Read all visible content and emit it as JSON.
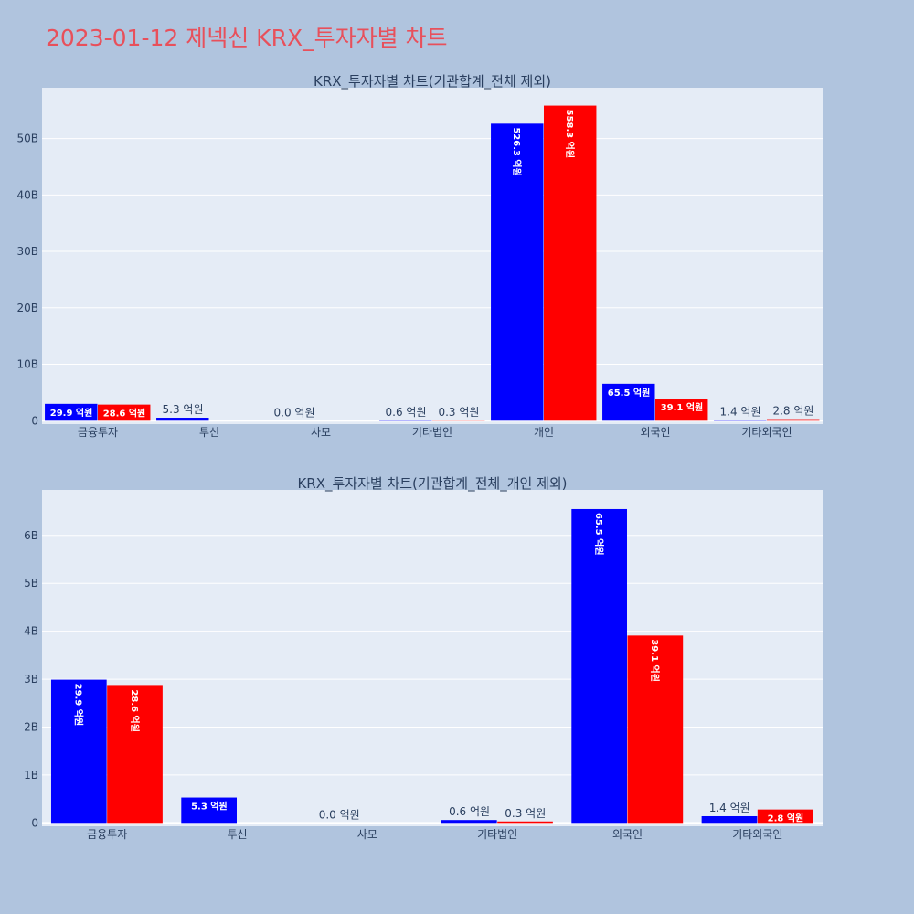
{
  "page_title": "2023-01-12 제넥신 KRX_투자자별 차트",
  "colors": {
    "page_bg": "#b0c4de",
    "plot_bg": "#e5ecf6",
    "series_1": "#0000ff",
    "series_2": "#ff0000",
    "title_color": "#e8505b"
  },
  "chart_data": [
    {
      "type": "bar",
      "title": "KRX_투자자별 차트(기관합계_전체 제외)",
      "categories": [
        "금융투자",
        "투신",
        "사모",
        "기타법인",
        "개인",
        "외국인",
        "기타외국인"
      ],
      "yticks": [
        "0",
        "10B",
        "20B",
        "30B",
        "40B",
        "50B"
      ],
      "ytick_values": [
        0,
        10,
        20,
        30,
        40,
        50
      ],
      "ylim": [
        -0.6,
        59
      ],
      "unit_scale": "B",
      "grid": true,
      "legend": "none",
      "series": [
        {
          "values": [
            2.99,
            0.53,
            0.0,
            0.06,
            52.63,
            6.55,
            0.14
          ],
          "labels": [
            "29.9 억원",
            "5.3 억원",
            "0.0 억원",
            "0.6 억원",
            "526.3 억원",
            "65.5 억원",
            "1.4 억원"
          ]
        },
        {
          "values": [
            2.86,
            null,
            null,
            0.03,
            55.83,
            3.91,
            0.28
          ],
          "labels": [
            "28.6 억원",
            "",
            "",
            "0.3 억원",
            "558.3 억원",
            "39.1 억원",
            "2.8 억원"
          ]
        }
      ]
    },
    {
      "type": "bar",
      "title": "KRX_투자자별 차트(기관합계_전체_개인 제외)",
      "categories": [
        "금융투자",
        "투신",
        "사모",
        "기타법인",
        "외국인",
        "기타외국인"
      ],
      "yticks": [
        "0",
        "1B",
        "2B",
        "3B",
        "4B",
        "5B",
        "6B"
      ],
      "ytick_values": [
        0,
        1,
        2,
        3,
        4,
        5,
        6
      ],
      "ylim": [
        -0.07,
        6.95
      ],
      "unit_scale": "B",
      "grid": true,
      "legend": "none",
      "series": [
        {
          "values": [
            2.99,
            0.53,
            0.0,
            0.06,
            6.55,
            0.14
          ],
          "labels": [
            "29.9 억원",
            "5.3 억원",
            "0.0 억원",
            "0.6 억원",
            "65.5 억원",
            "1.4 억원"
          ]
        },
        {
          "values": [
            2.86,
            null,
            null,
            0.03,
            3.91,
            0.28
          ],
          "labels": [
            "28.6 억원",
            "",
            "",
            "0.3 억원",
            "39.1 억원",
            "2.8 억원"
          ]
        }
      ]
    }
  ]
}
